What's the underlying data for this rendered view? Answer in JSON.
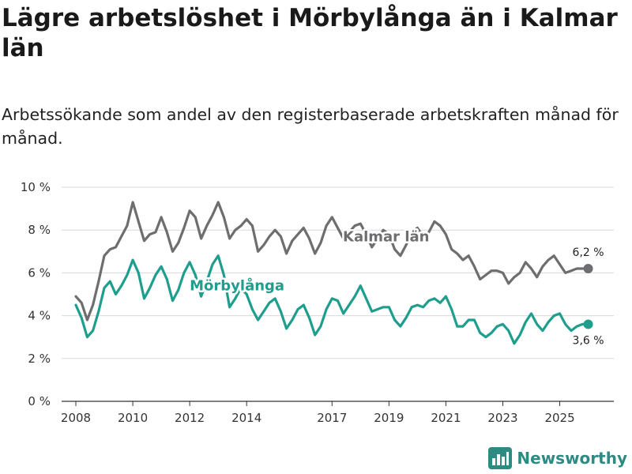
{
  "title": "Lägre arbetslöshet i Mörbylånga än i Kalmar län",
  "subtitle": "Arbetssökande som andel av den registerbaserade arbetskraften månad för månad.",
  "brand": {
    "name": "Newsworthy",
    "icon": "newsworthy-logo-icon",
    "color": "#2e8b82"
  },
  "chart_data": {
    "type": "line",
    "title": "Lägre arbetslöshet i Mörbylånga än i Kalmar län",
    "ylabel": "",
    "xlabel": "",
    "ylim": [
      0,
      10
    ],
    "xlim": [
      2007.5,
      2026.9
    ],
    "y_ticks": [
      0,
      2,
      4,
      6,
      8,
      10
    ],
    "y_tick_labels": [
      "0 %",
      "2 %",
      "4 %",
      "6 %",
      "8 %",
      "10 %"
    ],
    "x_ticks": [
      2008,
      2010,
      2012,
      2014,
      2017,
      2019,
      2021,
      2023,
      2025
    ],
    "x_tick_labels": [
      "2008",
      "2010",
      "2012",
      "2014",
      "2017",
      "2019",
      "2021",
      "2023",
      "2025"
    ],
    "grid": true,
    "series": [
      {
        "name": "Kalmar län",
        "color": "#6e6e70",
        "end_label": "6,2 %",
        "points": [
          [
            2008.0,
            4.9
          ],
          [
            2008.2,
            4.6
          ],
          [
            2008.4,
            3.8
          ],
          [
            2008.6,
            4.5
          ],
          [
            2008.8,
            5.6
          ],
          [
            2009.0,
            6.8
          ],
          [
            2009.2,
            7.1
          ],
          [
            2009.4,
            7.2
          ],
          [
            2009.6,
            7.7
          ],
          [
            2009.8,
            8.2
          ],
          [
            2010.0,
            9.3
          ],
          [
            2010.2,
            8.4
          ],
          [
            2010.4,
            7.5
          ],
          [
            2010.6,
            7.8
          ],
          [
            2010.8,
            7.9
          ],
          [
            2011.0,
            8.6
          ],
          [
            2011.2,
            7.9
          ],
          [
            2011.4,
            7.0
          ],
          [
            2011.6,
            7.4
          ],
          [
            2011.8,
            8.1
          ],
          [
            2012.0,
            8.9
          ],
          [
            2012.2,
            8.6
          ],
          [
            2012.4,
            7.6
          ],
          [
            2012.6,
            8.2
          ],
          [
            2012.8,
            8.7
          ],
          [
            2013.0,
            9.3
          ],
          [
            2013.2,
            8.6
          ],
          [
            2013.4,
            7.6
          ],
          [
            2013.6,
            8.0
          ],
          [
            2013.8,
            8.2
          ],
          [
            2014.0,
            8.5
          ],
          [
            2014.2,
            8.2
          ],
          [
            2014.4,
            7.0
          ],
          [
            2014.6,
            7.3
          ],
          [
            2014.8,
            7.7
          ],
          [
            2015.0,
            8.0
          ],
          [
            2015.2,
            7.7
          ],
          [
            2015.4,
            6.9
          ],
          [
            2015.6,
            7.5
          ],
          [
            2015.8,
            7.8
          ],
          [
            2016.0,
            8.1
          ],
          [
            2016.2,
            7.6
          ],
          [
            2016.4,
            6.9
          ],
          [
            2016.6,
            7.4
          ],
          [
            2016.8,
            8.2
          ],
          [
            2017.0,
            8.6
          ],
          [
            2017.2,
            8.1
          ],
          [
            2017.4,
            7.6
          ],
          [
            2017.6,
            7.9
          ],
          [
            2017.8,
            8.2
          ],
          [
            2018.0,
            8.3
          ],
          [
            2018.2,
            7.8
          ],
          [
            2018.4,
            7.2
          ],
          [
            2018.6,
            7.6
          ],
          [
            2018.8,
            8.0
          ],
          [
            2019.0,
            7.8
          ],
          [
            2019.2,
            7.1
          ],
          [
            2019.4,
            6.8
          ],
          [
            2019.6,
            7.3
          ],
          [
            2019.8,
            7.9
          ],
          [
            2020.0,
            8.1
          ],
          [
            2020.2,
            7.7
          ],
          [
            2020.4,
            7.9
          ],
          [
            2020.6,
            8.4
          ],
          [
            2020.8,
            8.2
          ],
          [
            2021.0,
            7.8
          ],
          [
            2021.2,
            7.1
          ],
          [
            2021.4,
            6.9
          ],
          [
            2021.6,
            6.6
          ],
          [
            2021.8,
            6.8
          ],
          [
            2022.0,
            6.3
          ],
          [
            2022.2,
            5.7
          ],
          [
            2022.4,
            5.9
          ],
          [
            2022.6,
            6.1
          ],
          [
            2022.8,
            6.1
          ],
          [
            2023.0,
            6.0
          ],
          [
            2023.2,
            5.5
          ],
          [
            2023.4,
            5.8
          ],
          [
            2023.6,
            6.0
          ],
          [
            2023.8,
            6.5
          ],
          [
            2024.0,
            6.2
          ],
          [
            2024.2,
            5.8
          ],
          [
            2024.4,
            6.3
          ],
          [
            2024.6,
            6.6
          ],
          [
            2024.8,
            6.8
          ],
          [
            2025.0,
            6.4
          ],
          [
            2025.2,
            6.0
          ],
          [
            2025.4,
            6.1
          ],
          [
            2025.6,
            6.2
          ],
          [
            2025.8,
            6.2
          ],
          [
            2026.0,
            6.2
          ]
        ]
      },
      {
        "name": "Mörbylånga",
        "color": "#1f9e8e",
        "end_label": "3,6 %",
        "points": [
          [
            2008.0,
            4.5
          ],
          [
            2008.2,
            3.9
          ],
          [
            2008.4,
            3.0
          ],
          [
            2008.6,
            3.3
          ],
          [
            2008.8,
            4.2
          ],
          [
            2009.0,
            5.3
          ],
          [
            2009.2,
            5.6
          ],
          [
            2009.4,
            5.0
          ],
          [
            2009.6,
            5.4
          ],
          [
            2009.8,
            5.9
          ],
          [
            2010.0,
            6.6
          ],
          [
            2010.2,
            6.0
          ],
          [
            2010.4,
            4.8
          ],
          [
            2010.6,
            5.3
          ],
          [
            2010.8,
            5.9
          ],
          [
            2011.0,
            6.3
          ],
          [
            2011.2,
            5.7
          ],
          [
            2011.4,
            4.7
          ],
          [
            2011.6,
            5.2
          ],
          [
            2011.8,
            6.0
          ],
          [
            2012.0,
            6.5
          ],
          [
            2012.2,
            5.9
          ],
          [
            2012.4,
            4.9
          ],
          [
            2012.6,
            5.6
          ],
          [
            2012.8,
            6.4
          ],
          [
            2013.0,
            6.8
          ],
          [
            2013.2,
            5.9
          ],
          [
            2013.4,
            4.4
          ],
          [
            2013.6,
            4.8
          ],
          [
            2013.8,
            5.3
          ],
          [
            2014.0,
            5.0
          ],
          [
            2014.2,
            4.3
          ],
          [
            2014.4,
            3.8
          ],
          [
            2014.6,
            4.2
          ],
          [
            2014.8,
            4.6
          ],
          [
            2015.0,
            4.8
          ],
          [
            2015.2,
            4.2
          ],
          [
            2015.4,
            3.4
          ],
          [
            2015.6,
            3.8
          ],
          [
            2015.8,
            4.3
          ],
          [
            2016.0,
            4.5
          ],
          [
            2016.2,
            3.9
          ],
          [
            2016.4,
            3.1
          ],
          [
            2016.6,
            3.5
          ],
          [
            2016.8,
            4.3
          ],
          [
            2017.0,
            4.8
          ],
          [
            2017.2,
            4.7
          ],
          [
            2017.4,
            4.1
          ],
          [
            2017.6,
            4.5
          ],
          [
            2017.8,
            4.9
          ],
          [
            2018.0,
            5.4
          ],
          [
            2018.2,
            4.8
          ],
          [
            2018.4,
            4.2
          ],
          [
            2018.6,
            4.3
          ],
          [
            2018.8,
            4.4
          ],
          [
            2019.0,
            4.4
          ],
          [
            2019.2,
            3.8
          ],
          [
            2019.4,
            3.5
          ],
          [
            2019.6,
            3.9
          ],
          [
            2019.8,
            4.4
          ],
          [
            2020.0,
            4.5
          ],
          [
            2020.2,
            4.4
          ],
          [
            2020.4,
            4.7
          ],
          [
            2020.6,
            4.8
          ],
          [
            2020.8,
            4.6
          ],
          [
            2021.0,
            4.9
          ],
          [
            2021.2,
            4.3
          ],
          [
            2021.4,
            3.5
          ],
          [
            2021.6,
            3.5
          ],
          [
            2021.8,
            3.8
          ],
          [
            2022.0,
            3.8
          ],
          [
            2022.2,
            3.2
          ],
          [
            2022.4,
            3.0
          ],
          [
            2022.6,
            3.2
          ],
          [
            2022.8,
            3.5
          ],
          [
            2023.0,
            3.6
          ],
          [
            2023.2,
            3.3
          ],
          [
            2023.4,
            2.7
          ],
          [
            2023.6,
            3.1
          ],
          [
            2023.8,
            3.7
          ],
          [
            2024.0,
            4.1
          ],
          [
            2024.2,
            3.6
          ],
          [
            2024.4,
            3.3
          ],
          [
            2024.6,
            3.7
          ],
          [
            2024.8,
            4.0
          ],
          [
            2025.0,
            4.1
          ],
          [
            2025.2,
            3.6
          ],
          [
            2025.4,
            3.3
          ],
          [
            2025.6,
            3.5
          ],
          [
            2025.8,
            3.6
          ],
          [
            2026.0,
            3.6
          ]
        ]
      }
    ]
  }
}
